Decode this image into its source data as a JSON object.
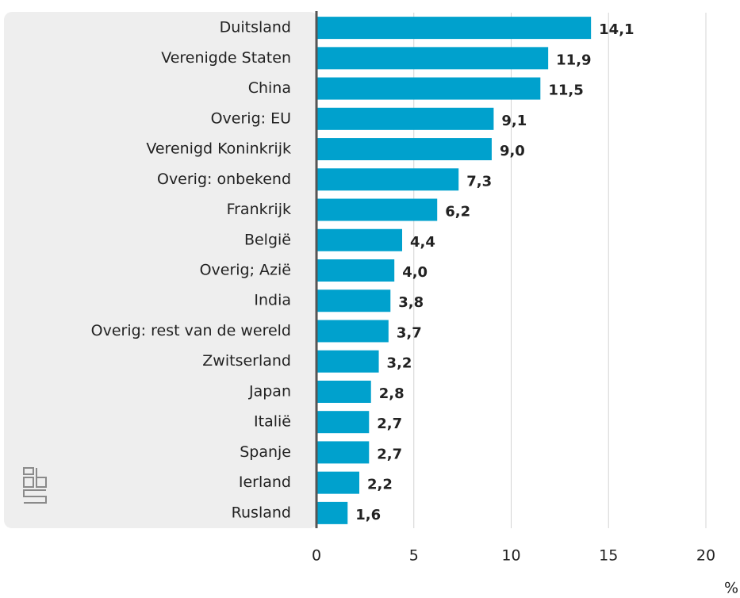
{
  "chart_data": {
    "type": "bar",
    "orientation": "horizontal",
    "categories": [
      "Duitsland",
      "Verenigde Staten",
      "China",
      "Overig: EU",
      "Verenigd Koninkrijk",
      "Overig: onbekend",
      "Frankrijk",
      "België",
      "Overig; Azië",
      "India",
      "Overig: rest van de wereld",
      "Zwitserland",
      "Japan",
      "Italië",
      "Spanje",
      "Ierland",
      "Rusland"
    ],
    "values": [
      14.1,
      11.9,
      11.5,
      9.1,
      9.0,
      7.3,
      6.2,
      4.4,
      4.0,
      3.8,
      3.7,
      3.2,
      2.8,
      2.7,
      2.7,
      2.2,
      1.6
    ],
    "value_labels": [
      "14,1",
      "11,9",
      "11,5",
      "9,1",
      "9,0",
      "7,3",
      "6,2",
      "4,4",
      "4,0",
      "3,8",
      "3,7",
      "3,2",
      "2,8",
      "2,7",
      "2,7",
      "2,2",
      "1,6"
    ],
    "color": "#00a1cd",
    "xlabel": "%",
    "xlim": [
      0,
      20
    ],
    "xticks": [
      0,
      5,
      10,
      15,
      20
    ],
    "grid": true
  }
}
